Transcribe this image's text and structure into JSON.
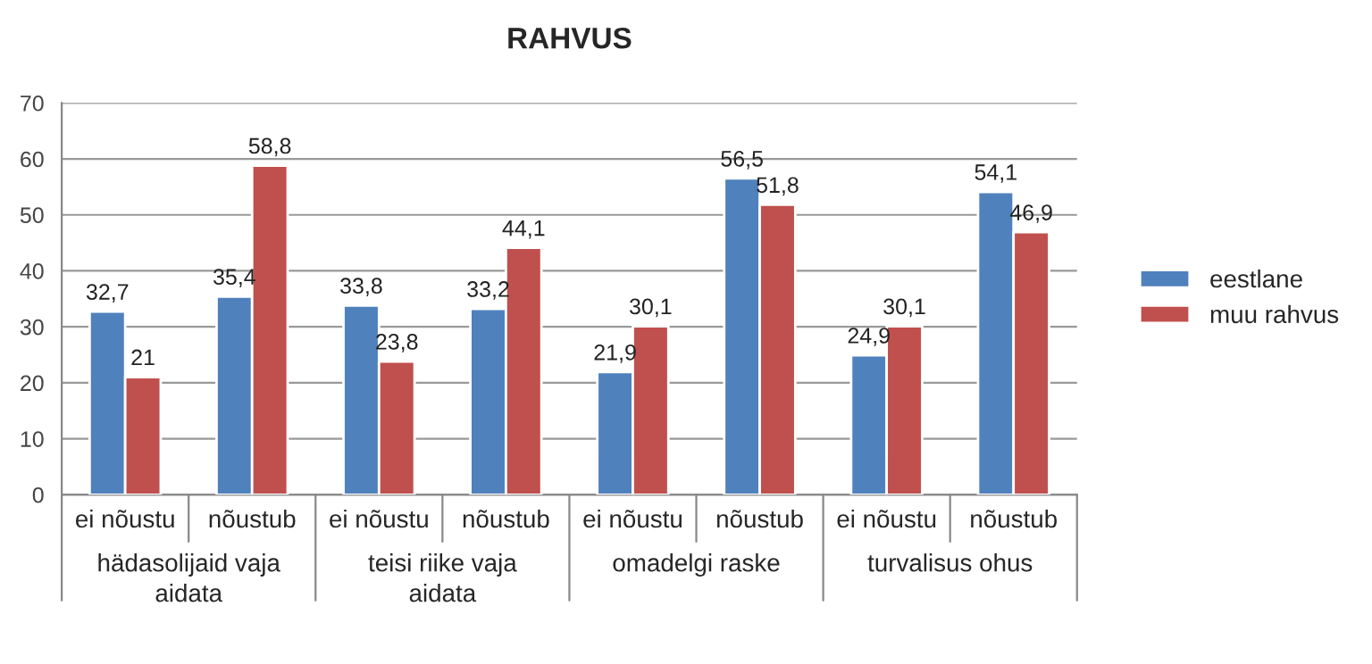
{
  "chart_data": {
    "type": "bar",
    "title": "RAHVUS",
    "categories": [
      "ei nõustu",
      "nõustub",
      "ei nõustu",
      "nõustub",
      "ei nõustu",
      "nõustub",
      "ei nõustu",
      "nõustub"
    ],
    "annotations": [
      "hädasolijaid vaja aidata",
      "teisi riike vaja aidata",
      "omadelgi raske",
      "turvalisus ohus"
    ],
    "series": [
      {
        "name": "eestlane",
        "color": "#4f81bd",
        "values": [
          32.7,
          35.4,
          33.8,
          33.2,
          21.9,
          56.5,
          24.9,
          54.1
        ],
        "value_labels": [
          "32,7",
          "35,4",
          "33,8",
          "33,2",
          "21,9",
          "56,5",
          "24,9",
          "54,1"
        ]
      },
      {
        "name": "muu rahvus",
        "color": "#c0504d",
        "values": [
          21,
          58.8,
          23.8,
          44.1,
          30.1,
          51.8,
          30.1,
          46.9
        ],
        "value_labels": [
          "21",
          "58,8",
          "23,8",
          "44,1",
          "30,1",
          "51,8",
          "30,1",
          "46,9"
        ]
      }
    ],
    "ylim": [
      0,
      70
    ],
    "yticks": [
      0,
      10,
      20,
      30,
      40,
      50,
      60,
      70
    ],
    "grid": "y",
    "legend": "right"
  }
}
